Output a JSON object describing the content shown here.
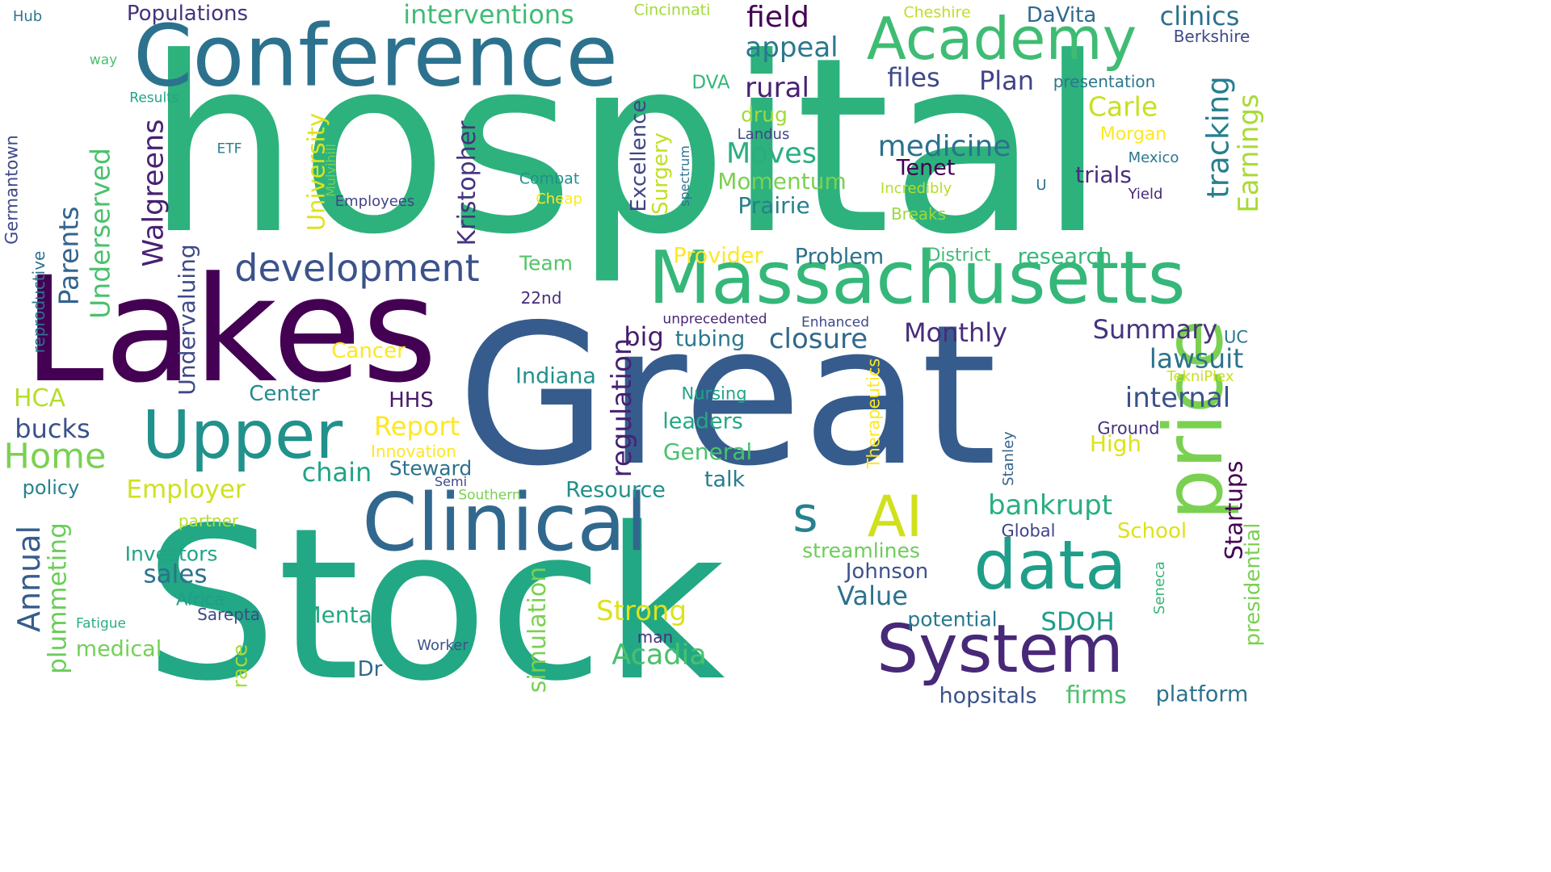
{
  "words": [
    {
      "text": "hospital",
      "color": "#2db27d",
      "vertical": false
    },
    {
      "text": "Stock",
      "color": "#22a884",
      "vertical": false
    },
    {
      "text": "Great",
      "color": "#365c8d",
      "vertical": false
    },
    {
      "text": "Lakes",
      "color": "#440154",
      "vertical": false
    },
    {
      "text": "Conference",
      "color": "#2c728e",
      "vertical": false
    },
    {
      "text": "Massachusetts",
      "color": "#35b779",
      "vertical": false
    },
    {
      "text": "Clinical",
      "color": "#31688e",
      "vertical": false
    },
    {
      "text": "price",
      "color": "#7ad151",
      "vertical": true
    },
    {
      "text": "Upper",
      "color": "#21918c",
      "vertical": false
    },
    {
      "text": "System",
      "color": "#482878",
      "vertical": false
    },
    {
      "text": "data",
      "color": "#1f9e89",
      "vertical": false
    },
    {
      "text": "Academy",
      "color": "#3fbc73",
      "vertical": false
    },
    {
      "text": "AI",
      "color": "#d0e11c",
      "vertical": false
    },
    {
      "text": "development",
      "color": "#3b528b",
      "vertical": false
    },
    {
      "text": "s",
      "color": "#26828e",
      "vertical": false
    },
    {
      "text": "interventions",
      "color": "#3fbc73",
      "vertical": false
    },
    {
      "text": "Populations",
      "color": "#46337e",
      "vertical": false
    },
    {
      "text": "field",
      "color": "#440154",
      "vertical": false
    },
    {
      "text": "appeal",
      "color": "#2a788e",
      "vertical": false
    },
    {
      "text": "files",
      "color": "#3e4989",
      "vertical": false
    },
    {
      "text": "Plan",
      "color": "#414487",
      "vertical": false
    },
    {
      "text": "rural",
      "color": "#482173",
      "vertical": false
    },
    {
      "text": "DaVita",
      "color": "#31688e",
      "vertical": false
    },
    {
      "text": "clinics",
      "color": "#2c728e",
      "vertical": false
    },
    {
      "text": "Berkshire",
      "color": "#3e4989",
      "vertical": false
    },
    {
      "text": "Cincinnati",
      "color": "#a0da39",
      "vertical": false
    },
    {
      "text": "Cheshire",
      "color": "#bddf26",
      "vertical": false
    },
    {
      "text": "Hub",
      "color": "#2a788e",
      "vertical": false
    },
    {
      "text": "way",
      "color": "#4ac16d",
      "vertical": false
    },
    {
      "text": "Results",
      "color": "#20a486",
      "vertical": false
    },
    {
      "text": "Germantown",
      "color": "#3e4989",
      "vertical": true
    },
    {
      "text": "ETF",
      "color": "#287c8e",
      "vertical": false
    },
    {
      "text": "Employees",
      "color": "#414487",
      "vertical": false
    },
    {
      "text": "Mulvihill",
      "color": "#73d056",
      "vertical": true
    },
    {
      "text": "University",
      "color": "#dde318",
      "vertical": true
    },
    {
      "text": "Walgreens",
      "color": "#482173",
      "vertical": true
    },
    {
      "text": "Parents",
      "color": "#33638d",
      "vertical": true
    },
    {
      "text": "Underserved",
      "color": "#4ac16d",
      "vertical": true
    },
    {
      "text": "Kristopher",
      "color": "#46337e",
      "vertical": true
    },
    {
      "text": "reproductive",
      "color": "#2c728e",
      "vertical": true
    },
    {
      "text": "Undervaluing",
      "color": "#3e4989",
      "vertical": true
    },
    {
      "text": "Combat",
      "color": "#21918c",
      "vertical": false
    },
    {
      "text": "Cheap",
      "color": "#fde725",
      "vertical": false
    },
    {
      "text": "Team",
      "color": "#54c568",
      "vertical": false
    },
    {
      "text": "22nd",
      "color": "#472d7b",
      "vertical": false
    },
    {
      "text": "DVA",
      "color": "#35b779",
      "vertical": false
    },
    {
      "text": "drug",
      "color": "#a0da39",
      "vertical": false
    },
    {
      "text": "Landus",
      "color": "#414487",
      "vertical": false
    },
    {
      "text": "Moves",
      "color": "#29af7f",
      "vertical": false
    },
    {
      "text": "Momentum",
      "color": "#7ad151",
      "vertical": false
    },
    {
      "text": "Prairie",
      "color": "#277f8e",
      "vertical": false
    },
    {
      "text": "Excellence",
      "color": "#414487",
      "vertical": true
    },
    {
      "text": "Surgery",
      "color": "#c2df23",
      "vertical": true
    },
    {
      "text": "spectrum",
      "color": "#2c728e",
      "vertical": true
    },
    {
      "text": "medicine",
      "color": "#2c728e",
      "vertical": false
    },
    {
      "text": "Tenet",
      "color": "#440154",
      "vertical": false
    },
    {
      "text": "trials",
      "color": "#472d7b",
      "vertical": false
    },
    {
      "text": "Carle",
      "color": "#c8e020",
      "vertical": false
    },
    {
      "text": "presentation",
      "color": "#2a788e",
      "vertical": false
    },
    {
      "text": "Morgan",
      "color": "#fde725",
      "vertical": false
    },
    {
      "text": "Mexico",
      "color": "#2a788e",
      "vertical": false
    },
    {
      "text": "Yield",
      "color": "#482878",
      "vertical": false
    },
    {
      "text": "Incredibly",
      "color": "#b5de2b",
      "vertical": false
    },
    {
      "text": "U",
      "color": "#2c728e",
      "vertical": false
    },
    {
      "text": "Breaks",
      "color": "#9bd93c",
      "vertical": false
    },
    {
      "text": "tracking",
      "color": "#277f8e",
      "vertical": true
    },
    {
      "text": "Earnings",
      "color": "#a8db34",
      "vertical": true
    },
    {
      "text": "Provider",
      "color": "#fde725",
      "vertical": false
    },
    {
      "text": "Problem",
      "color": "#2c728e",
      "vertical": false
    },
    {
      "text": "District",
      "color": "#3fbc73",
      "vertical": false
    },
    {
      "text": "research",
      "color": "#35b779",
      "vertical": false
    },
    {
      "text": "unprecedented",
      "color": "#482878",
      "vertical": false
    },
    {
      "text": "Enhanced",
      "color": "#3e4989",
      "vertical": false
    },
    {
      "text": "big",
      "color": "#481b6d",
      "vertical": false
    },
    {
      "text": "tubing",
      "color": "#2a788e",
      "vertical": false
    },
    {
      "text": "closure",
      "color": "#31688e",
      "vertical": false
    },
    {
      "text": "Monthly",
      "color": "#472d7b",
      "vertical": false
    },
    {
      "text": "Summary",
      "color": "#46337e",
      "vertical": false
    },
    {
      "text": "UC",
      "color": "#2a788e",
      "vertical": false
    },
    {
      "text": "lawsuit",
      "color": "#2c728e",
      "vertical": false
    },
    {
      "text": "TekniPlex",
      "color": "#c8e020",
      "vertical": false
    },
    {
      "text": "Cancer",
      "color": "#fde725",
      "vertical": false
    },
    {
      "text": "Indiana",
      "color": "#21918c",
      "vertical": false
    },
    {
      "text": "regulation",
      "color": "#482173",
      "vertical": true
    },
    {
      "text": "Therapeutics",
      "color": "#fde725",
      "vertical": true
    },
    {
      "text": "Nursing",
      "color": "#20a486",
      "vertical": false
    },
    {
      "text": "internal",
      "color": "#3b528b",
      "vertical": false
    },
    {
      "text": "HCA",
      "color": "#b5de2b",
      "vertical": false
    },
    {
      "text": "Center",
      "color": "#23898e",
      "vertical": false
    },
    {
      "text": "HHS",
      "color": "#481b6d",
      "vertical": false
    },
    {
      "text": "Report",
      "color": "#fde725",
      "vertical": false
    },
    {
      "text": "leaders",
      "color": "#22a884",
      "vertical": false
    },
    {
      "text": "Ground",
      "color": "#46337e",
      "vertical": false
    },
    {
      "text": "bucks",
      "color": "#3b528b",
      "vertical": false
    },
    {
      "text": "Innovation",
      "color": "#fde725",
      "vertical": false
    },
    {
      "text": "General",
      "color": "#4ac16d",
      "vertical": false
    },
    {
      "text": "High",
      "color": "#dde318",
      "vertical": false
    },
    {
      "text": "Stanley",
      "color": "#33638d",
      "vertical": true
    },
    {
      "text": "Home",
      "color": "#7ad151",
      "vertical": false
    },
    {
      "text": "chain",
      "color": "#20a486",
      "vertical": false
    },
    {
      "text": "Steward",
      "color": "#2c728e",
      "vertical": false
    },
    {
      "text": "Startups",
      "color": "#440154",
      "vertical": true
    },
    {
      "text": "policy",
      "color": "#26828e",
      "vertical": false
    },
    {
      "text": "Employer",
      "color": "#d0e11c",
      "vertical": false
    },
    {
      "text": "Semi",
      "color": "#3e4989",
      "vertical": false
    },
    {
      "text": "Southern",
      "color": "#7ad151",
      "vertical": false
    },
    {
      "text": "Resource",
      "color": "#21918c",
      "vertical": false
    },
    {
      "text": "talk",
      "color": "#287c8e",
      "vertical": false
    },
    {
      "text": "bankrupt",
      "color": "#29af7f",
      "vertical": false
    },
    {
      "text": "Annual",
      "color": "#365c8d",
      "vertical": true
    },
    {
      "text": "partner",
      "color": "#b5de2b",
      "vertical": false
    },
    {
      "text": "plummeting",
      "color": "#6ccd5a",
      "vertical": true
    },
    {
      "text": "Global",
      "color": "#414487",
      "vertical": false
    },
    {
      "text": "School",
      "color": "#dde318",
      "vertical": false
    },
    {
      "text": "Investors",
      "color": "#20a486",
      "vertical": false
    },
    {
      "text": "streamlines",
      "color": "#6ccd5a",
      "vertical": false
    },
    {
      "text": "presidential",
      "color": "#7ad151",
      "vertical": true
    },
    {
      "text": "sales",
      "color": "#2c728e",
      "vertical": false
    },
    {
      "text": "Johnson",
      "color": "#3b528b",
      "vertical": false
    },
    {
      "text": "Seneca",
      "color": "#35b779",
      "vertical": true
    },
    {
      "text": "Africa",
      "color": "#1f9e89",
      "vertical": false
    },
    {
      "text": "Value",
      "color": "#2c728e",
      "vertical": false
    },
    {
      "text": "Sarepta",
      "color": "#3e4989",
      "vertical": false
    },
    {
      "text": "simulation",
      "color": "#7ad151",
      "vertical": true
    },
    {
      "text": "Strong",
      "color": "#dde318",
      "vertical": false
    },
    {
      "text": "Mental",
      "color": "#22a884",
      "vertical": false
    },
    {
      "text": "potential",
      "color": "#2a788e",
      "vertical": false
    },
    {
      "text": "SDOH",
      "color": "#1f9e89",
      "vertical": false
    },
    {
      "text": "Fatigue",
      "color": "#29af7f",
      "vertical": false
    },
    {
      "text": "medical",
      "color": "#73d056",
      "vertical": false
    },
    {
      "text": "race",
      "color": "#a8db34",
      "vertical": true
    },
    {
      "text": "man",
      "color": "#46337e",
      "vertical": false
    },
    {
      "text": "Worker",
      "color": "#3b528b",
      "vertical": false
    },
    {
      "text": "Acadia",
      "color": "#4ac16d",
      "vertical": false
    },
    {
      "text": "Dr",
      "color": "#31688e",
      "vertical": false
    },
    {
      "text": "hopsitals",
      "color": "#3b528b",
      "vertical": false
    },
    {
      "text": "firms",
      "color": "#4ac16d",
      "vertical": false
    },
    {
      "text": "platform",
      "color": "#2c728e",
      "vertical": false
    }
  ]
}
